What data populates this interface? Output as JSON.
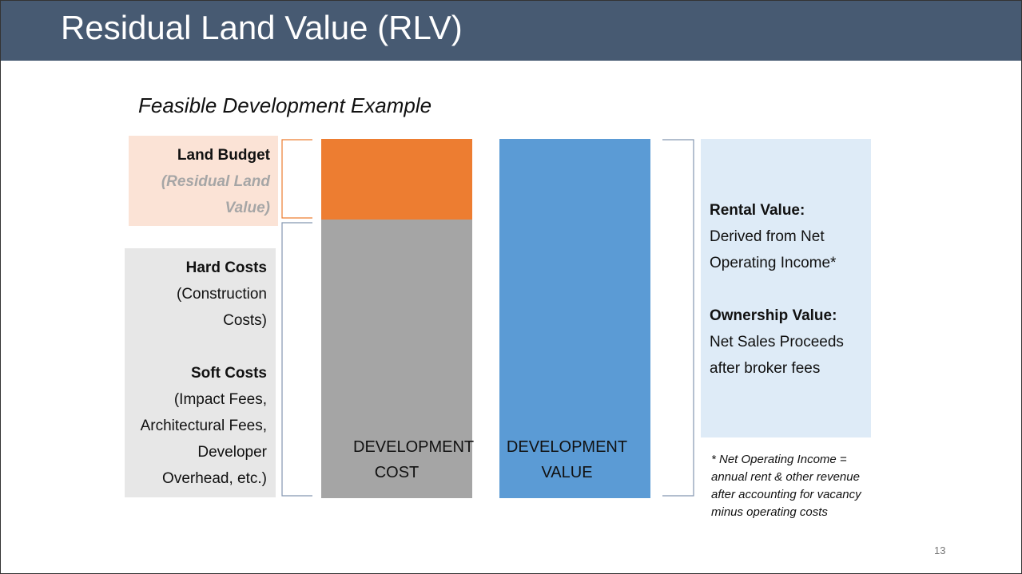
{
  "header": {
    "title": "Residual Land Value (RLV)"
  },
  "subtitle": "Feasible Development Example",
  "land_budget": {
    "label": "Land Budget",
    "note": "(Residual Land Value)"
  },
  "hard_costs": {
    "label": "Hard Costs",
    "note": "(Construction Costs)"
  },
  "soft_costs": {
    "label": "Soft Costs",
    "note": "(Impact Fees, Architectural Fees, Developer Overhead, etc.)"
  },
  "cost_bar": "DEVELOPMENT COST",
  "value_bar": "DEVELOPMENT VALUE",
  "rental": {
    "label": "Rental Value:",
    "note": "Derived from Net Operating Income*"
  },
  "ownership": {
    "label": "Ownership Value:",
    "note": "Net Sales Proceeds after broker fees"
  },
  "footnote": "* Net Operating Income = annual rent & other revenue after accounting for vacancy minus operating costs",
  "page_number": "13"
}
